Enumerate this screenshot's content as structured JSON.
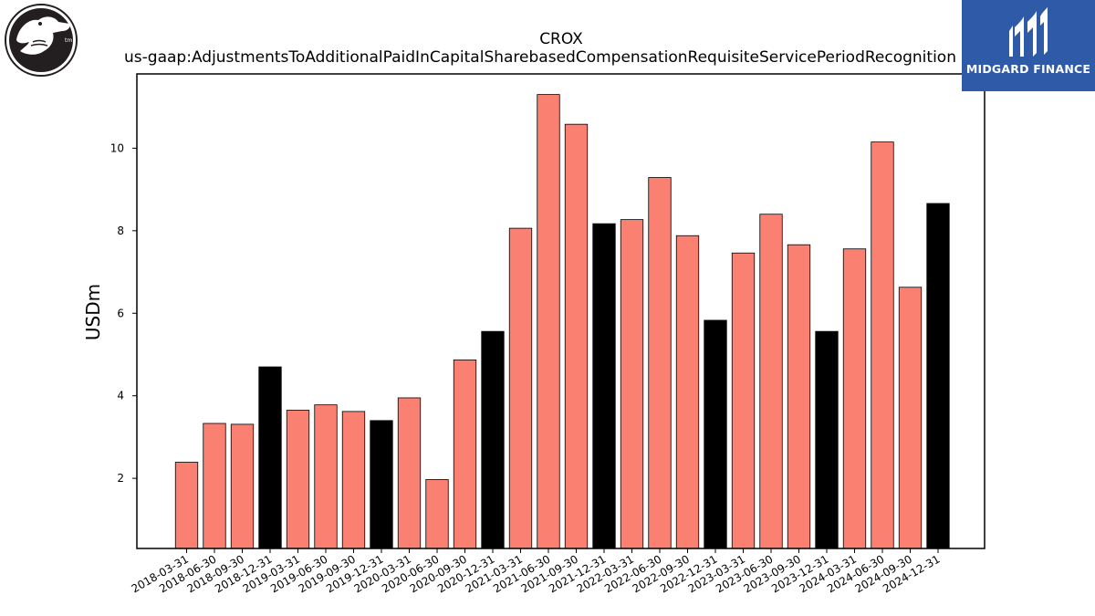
{
  "header": {
    "ticker": "CROX",
    "metric": "us-gaap:AdjustmentsToAdditionalPaidInCapitalSharebasedCompensationRequisiteServicePeriodRecognition"
  },
  "logos": {
    "left": {
      "icon": "crocodile-logo-icon"
    },
    "right": {
      "icon": "midgard-logo-icon",
      "text": "MIDGARD FINANCE",
      "background": "#2e5aa8"
    }
  },
  "chart_data": {
    "type": "bar",
    "title": "CROX",
    "subtitle": "us-gaap:AdjustmentsToAdditionalPaidInCapitalSharebasedCompensationRequisiteServicePeriodRecognition",
    "xlabel": "",
    "ylabel": "USDm",
    "ylim": [
      0.3,
      11.8
    ],
    "yticks": [
      2,
      4,
      6,
      8,
      10
    ],
    "grid": false,
    "colors": {
      "quarter": "#fa8072",
      "year_end": "#000000"
    },
    "categories": [
      "2018-03-31",
      "2018-06-30",
      "2018-09-30",
      "2018-12-31",
      "2019-03-31",
      "2019-06-30",
      "2019-09-30",
      "2019-12-31",
      "2020-03-31",
      "2020-06-30",
      "2020-09-30",
      "2020-12-31",
      "2021-03-31",
      "2021-06-30",
      "2021-09-30",
      "2021-12-31",
      "2022-03-31",
      "2022-06-30",
      "2022-09-30",
      "2022-12-31",
      "2023-03-31",
      "2023-06-30",
      "2023-09-30",
      "2023-12-31",
      "2024-03-31",
      "2024-06-30",
      "2024-09-30",
      "2024-12-31"
    ],
    "values": [
      2.39,
      3.33,
      3.31,
      4.7,
      3.65,
      3.78,
      3.62,
      3.4,
      3.95,
      1.97,
      4.87,
      5.56,
      8.06,
      11.3,
      10.58,
      8.17,
      8.27,
      9.29,
      7.88,
      5.83,
      7.46,
      8.4,
      7.66,
      5.56,
      7.56,
      10.15,
      6.63,
      8.66
    ]
  }
}
